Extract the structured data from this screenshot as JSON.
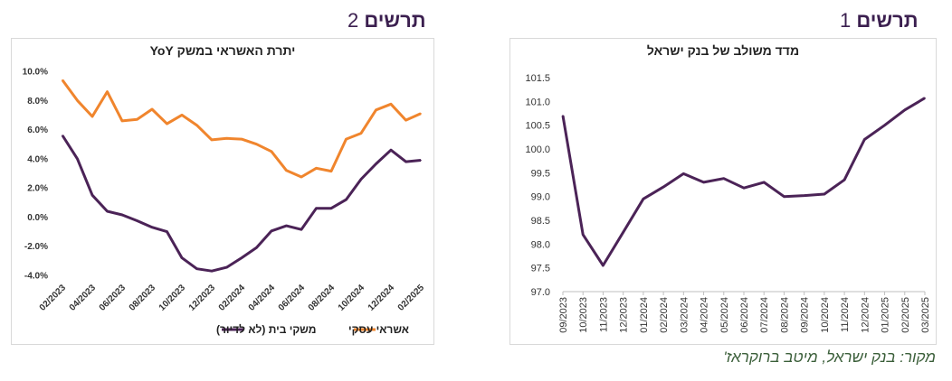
{
  "figures": {
    "left": {
      "word": "תרשים",
      "number": "2"
    },
    "right": {
      "word": "תרשים",
      "number": "1"
    }
  },
  "source_note": "מקור: בנק ישראל, מיטב ברוקראז'",
  "chart_data": [
    {
      "type": "line",
      "title": "יתרת האשראי במשק YoY",
      "categories": [
        "02/2023",
        "03/2023",
        "04/2023",
        "05/2023",
        "06/2023",
        "07/2023",
        "08/2023",
        "09/2023",
        "10/2023",
        "11/2023",
        "12/2023",
        "01/2024",
        "02/2024",
        "03/2024",
        "04/2024",
        "05/2024",
        "06/2024",
        "07/2024",
        "08/2024",
        "09/2024",
        "10/2024",
        "11/2024",
        "12/2024",
        "01/2025",
        "02/2025"
      ],
      "x_tick_labels": [
        "02/2023",
        "04/2023",
        "06/2023",
        "08/2023",
        "10/2023",
        "12/2023",
        "02/2024",
        "04/2024",
        "06/2024",
        "08/2024",
        "10/2024",
        "12/2024",
        "02/2025"
      ],
      "series": [
        {
          "name": "אשראי עסקי",
          "color": "#f0852d",
          "values": [
            9.4,
            8.0,
            6.9,
            8.6,
            6.6,
            6.7,
            7.4,
            6.4,
            7.0,
            6.3,
            5.3,
            5.4,
            5.35,
            5.0,
            4.5,
            3.2,
            2.75,
            3.35,
            3.15,
            5.35,
            5.75,
            7.35,
            7.75,
            6.65,
            7.1
          ]
        },
        {
          "name": "משקי בית (לא לדיור)",
          "color": "#4b2357",
          "values": [
            5.6,
            4.0,
            1.5,
            0.4,
            0.15,
            -0.25,
            -0.7,
            -1.0,
            -2.8,
            -3.55,
            -3.7,
            -3.45,
            -2.8,
            -2.1,
            -0.95,
            -0.6,
            -0.85,
            0.6,
            0.6,
            1.2,
            2.6,
            3.65,
            4.6,
            3.8,
            3.9
          ]
        }
      ],
      "y_ticks": [
        "10.0%",
        "8.0%",
        "6.0%",
        "4.0%",
        "2.0%",
        "0.0%",
        "-2.0%",
        "-4.0%"
      ],
      "ylim": [
        -4,
        10
      ],
      "legend": "bottom",
      "grid": false
    },
    {
      "type": "line",
      "title": "מדד משולב של בנק ישראל",
      "categories": [
        "09/2023",
        "10/2023",
        "11/2023",
        "12/2023",
        "01/2024",
        "02/2024",
        "03/2024",
        "04/2024",
        "05/2024",
        "06/2024",
        "07/2024",
        "08/2024",
        "09/2024",
        "10/2024",
        "11/2024",
        "12/2024",
        "01/2025",
        "02/2025",
        "03/2025"
      ],
      "series": [
        {
          "color": "#4b2357",
          "values": [
            100.7,
            98.2,
            97.55,
            98.25,
            98.95,
            99.2,
            99.48,
            99.3,
            99.38,
            99.18,
            99.3,
            99.0,
            99.02,
            99.05,
            99.35,
            100.2,
            100.5,
            100.82,
            101.07
          ]
        }
      ],
      "y_ticks": [
        "101.5",
        "101.0",
        "100.5",
        "100.0",
        "99.5",
        "99.0",
        "98.5",
        "98.0",
        "97.5",
        "97.0"
      ],
      "ylim": [
        97.0,
        101.5
      ],
      "grid": false
    }
  ]
}
